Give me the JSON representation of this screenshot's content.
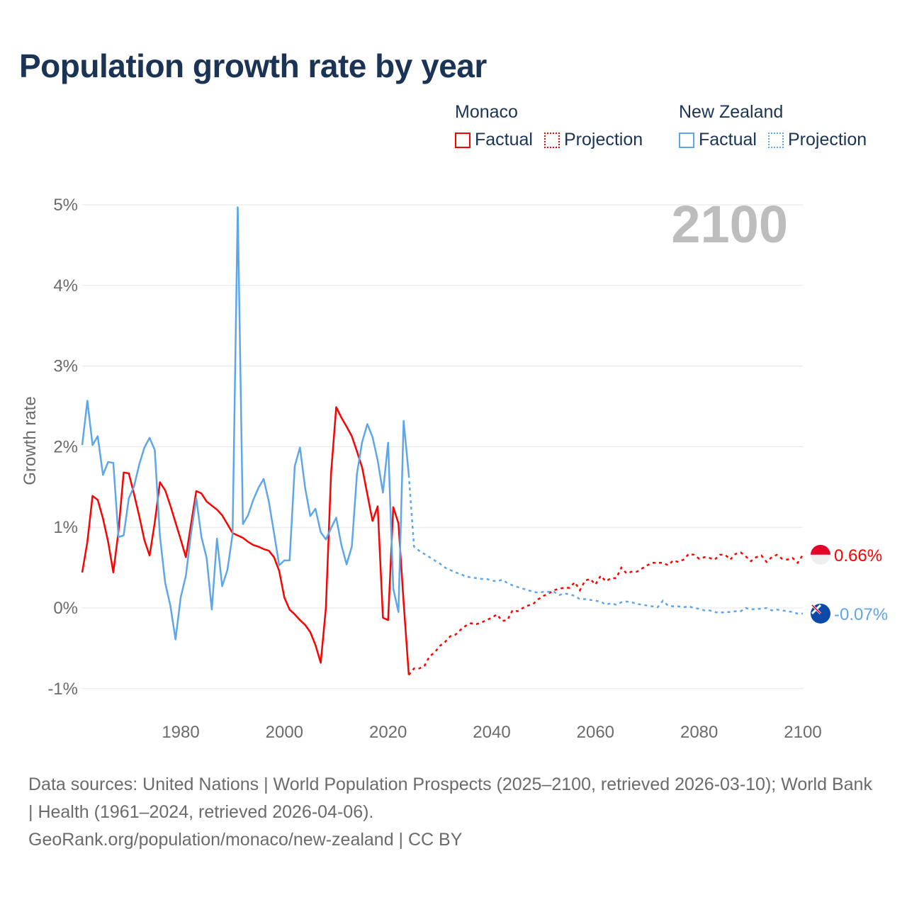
{
  "title": "Population growth rate by year",
  "legend": [
    {
      "country": "Monaco",
      "factual": "Factual",
      "projection": "Projection",
      "color": "#ff0000"
    },
    {
      "country": "New Zealand",
      "factual": "Factual",
      "projection": "Projection",
      "color": "#5ea6ea"
    }
  ],
  "footer": {
    "sources": "Data sources: United Nations | World Population Prospects (2025–2100, retrieved 2026-03-10); World Bank | Health (1961–2024, retrieved 2026-04-06).",
    "credit": "GeoRank.org/population/monaco/new-zealand | CC BY"
  },
  "chart_data": {
    "type": "line",
    "title": "Population growth rate by year",
    "ylabel": "Growth rate",
    "xlabel": "",
    "year_label": "2100",
    "xlim": [
      1961,
      2100
    ],
    "ylim": [
      -1.2,
      5.1
    ],
    "x_ticks": [
      1980,
      2000,
      2020,
      2040,
      2060,
      2080,
      2100
    ],
    "y_ticks": [
      -1,
      0,
      1,
      2,
      3,
      4,
      5
    ],
    "y_tick_labels": [
      "-1%",
      "0%",
      "1%",
      "2%",
      "3%",
      "4%",
      "5%"
    ],
    "grid": true,
    "series": [
      {
        "name": "Monaco",
        "color": "#ff0000",
        "end_label": "0.66%",
        "factual_start": 1961,
        "factual": [
          0.44,
          0.82,
          1.39,
          1.34,
          1.11,
          0.82,
          0.44,
          0.95,
          1.68,
          1.67,
          1.41,
          1.14,
          0.84,
          0.65,
          1.06,
          1.56,
          1.46,
          1.27,
          1.06,
          0.85,
          0.63,
          1.04,
          1.45,
          1.42,
          1.32,
          1.27,
          1.22,
          1.15,
          1.04,
          0.93,
          0.9,
          0.87,
          0.82,
          0.78,
          0.76,
          0.73,
          0.71,
          0.63,
          0.46,
          0.13,
          -0.02,
          -0.08,
          -0.15,
          -0.21,
          -0.3,
          -0.46,
          -0.68,
          0.0,
          1.67,
          2.49,
          2.36,
          2.25,
          2.13,
          1.94,
          1.74,
          1.41,
          1.08,
          1.26,
          -0.12,
          -0.15,
          1.25,
          1.05,
          0.07,
          -0.83
        ],
        "projection_start": 2024,
        "projection": [
          -0.83,
          -0.75,
          -0.75,
          -0.72,
          -0.6,
          -0.55,
          -0.47,
          -0.42,
          -0.35,
          -0.33,
          -0.27,
          -0.22,
          -0.19,
          -0.2,
          -0.18,
          -0.15,
          -0.12,
          -0.08,
          -0.16,
          -0.15,
          -0.03,
          -0.04,
          0.0,
          0.03,
          0.05,
          0.11,
          0.15,
          0.18,
          0.22,
          0.24,
          0.25,
          0.25,
          0.32,
          0.22,
          0.34,
          0.36,
          0.29,
          0.4,
          0.33,
          0.37,
          0.37,
          0.5,
          0.43,
          0.45,
          0.45,
          0.49,
          0.53,
          0.56,
          0.56,
          0.56,
          0.53,
          0.59,
          0.57,
          0.6,
          0.67,
          0.66,
          0.61,
          0.63,
          0.62,
          0.6,
          0.66,
          0.66,
          0.6,
          0.67,
          0.69,
          0.64,
          0.58,
          0.63,
          0.65,
          0.57,
          0.63,
          0.66,
          0.61,
          0.6,
          0.62,
          0.56,
          0.66
        ]
      },
      {
        "name": "New Zealand",
        "color": "#5ea6ea",
        "end_label": "-0.07%",
        "factual_start": 1961,
        "factual": [
          2.02,
          2.57,
          2.02,
          2.13,
          1.65,
          1.81,
          1.8,
          0.88,
          0.9,
          1.36,
          1.51,
          1.78,
          1.99,
          2.11,
          1.96,
          0.89,
          0.31,
          0.03,
          -0.39,
          0.13,
          0.4,
          0.92,
          1.36,
          0.88,
          0.62,
          -0.02,
          0.86,
          0.27,
          0.47,
          0.91,
          4.97,
          1.04,
          1.15,
          1.34,
          1.49,
          1.6,
          1.32,
          0.93,
          0.53,
          0.59,
          0.59,
          1.76,
          1.99,
          1.49,
          1.14,
          1.23,
          0.94,
          0.85,
          0.99,
          1.12,
          0.78,
          0.54,
          0.76,
          1.67,
          2.06,
          2.28,
          2.12,
          1.83,
          1.43,
          2.05,
          0.24,
          -0.05,
          2.32,
          1.65
        ],
        "projection_start": 2024,
        "projection": [
          1.65,
          0.76,
          0.71,
          0.67,
          0.63,
          0.59,
          0.55,
          0.5,
          0.47,
          0.44,
          0.42,
          0.39,
          0.38,
          0.37,
          0.36,
          0.36,
          0.34,
          0.33,
          0.35,
          0.31,
          0.28,
          0.26,
          0.24,
          0.22,
          0.2,
          0.19,
          0.2,
          0.2,
          0.2,
          0.16,
          0.18,
          0.17,
          0.15,
          0.11,
          0.11,
          0.1,
          0.09,
          0.08,
          0.04,
          0.06,
          0.04,
          0.07,
          0.08,
          0.07,
          0.05,
          0.04,
          0.03,
          0.02,
          0.01,
          0.09,
          0.03,
          0.02,
          0.02,
          0.01,
          0.02,
          0.0,
          -0.01,
          -0.03,
          -0.03,
          -0.05,
          -0.06,
          -0.05,
          -0.05,
          -0.04,
          -0.04,
          0.0,
          -0.02,
          -0.01,
          -0.01,
          0.0,
          -0.03,
          -0.02,
          -0.03,
          -0.04,
          -0.05,
          -0.07,
          -0.07
        ]
      }
    ]
  }
}
